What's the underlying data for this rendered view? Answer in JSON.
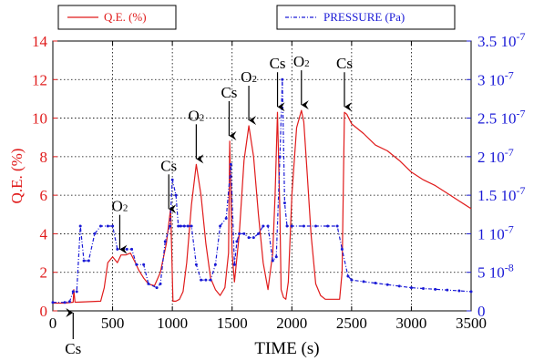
{
  "chart_data": {
    "type": "line",
    "xlabel": "TIME (s)",
    "ylabel_left": "Q.E. (%)",
    "xlim": [
      0,
      3500
    ],
    "ylim_left": [
      0,
      14
    ],
    "ylim_right": [
      0,
      3.5e-07
    ],
    "grid": "dotted",
    "x_ticks": [
      "0",
      "500",
      "1000",
      "1500",
      "2000",
      "2500",
      "3000",
      "3500"
    ],
    "left_ticks": [
      "0",
      "2",
      "4",
      "6",
      "8",
      "10",
      "12",
      "14"
    ],
    "right_ticks": [
      {
        "base": "0",
        "exp": ""
      },
      {
        "base": "5 10",
        "exp": "-8"
      },
      {
        "base": "1 10",
        "exp": "-7"
      },
      {
        "base": "1.5 10",
        "exp": "-7"
      },
      {
        "base": "2 10",
        "exp": "-7"
      },
      {
        "base": "2.5 10",
        "exp": "-7"
      },
      {
        "base": "3 10",
        "exp": "-7"
      },
      {
        "base": "3.5 10",
        "exp": "-7"
      }
    ],
    "series": [
      {
        "name": "Q.E. (%)",
        "axis": "left",
        "color": "#e01b1b",
        "style": "solid",
        "x": [
          0,
          100,
          170,
          175,
          185,
          200,
          400,
          430,
          460,
          500,
          540,
          570,
          610,
          650,
          690,
          720,
          760,
          800,
          850,
          900,
          950,
          985,
          995,
          1005,
          1030,
          1060,
          1090,
          1120,
          1160,
          1200,
          1240,
          1280,
          1320,
          1360,
          1400,
          1440,
          1470,
          1480,
          1500,
          1520,
          1560,
          1600,
          1640,
          1680,
          1720,
          1760,
          1800,
          1840,
          1860,
          1880,
          1900,
          1910,
          1930,
          1950,
          1970,
          2000,
          2040,
          2080,
          2100,
          2130,
          2160,
          2200,
          2240,
          2280,
          2300,
          2360,
          2400,
          2420,
          2440,
          2460,
          2500,
          2600,
          2700,
          2800,
          2900,
          3000,
          3100,
          3200,
          3300,
          3400,
          3500
        ],
        "y": [
          0.4,
          0.4,
          0.45,
          1.1,
          0.45,
          0.45,
          0.5,
          1.2,
          2.5,
          2.8,
          2.5,
          2.9,
          2.9,
          3.0,
          2.5,
          2.1,
          1.7,
          1.4,
          1.3,
          2.0,
          3.5,
          5.3,
          3.0,
          0.5,
          0.5,
          0.6,
          1.0,
          2.5,
          5.5,
          7.6,
          6.0,
          3.5,
          1.7,
          1.1,
          0.8,
          1.2,
          3.0,
          8.8,
          3.0,
          1.5,
          4.0,
          7.8,
          9.6,
          8.0,
          5.0,
          2.5,
          1.1,
          3.0,
          6.0,
          10.3,
          5.0,
          1.1,
          0.7,
          0.6,
          1.5,
          6.0,
          9.5,
          10.4,
          9.8,
          7.0,
          4.0,
          1.4,
          0.8,
          0.6,
          0.6,
          0.6,
          0.6,
          2.0,
          10.3,
          10.2,
          9.7,
          9.2,
          8.6,
          8.3,
          7.8,
          7.2,
          6.8,
          6.5,
          6.1,
          5.7,
          5.3
        ]
      },
      {
        "name": "PRESSURE (Pa)",
        "axis": "right",
        "color": "#1a1ad6",
        "style": "dash-dot-markers",
        "x": [
          0,
          100,
          140,
          170,
          200,
          230,
          260,
          300,
          350,
          400,
          460,
          500,
          540,
          580,
          620,
          660,
          700,
          760,
          800,
          870,
          900,
          940,
          980,
          1000,
          1030,
          1050,
          1070,
          1100,
          1130,
          1160,
          1200,
          1240,
          1280,
          1320,
          1360,
          1400,
          1450,
          1490,
          1520,
          1540,
          1560,
          1600,
          1640,
          1680,
          1720,
          1760,
          1800,
          1840,
          1870,
          1900,
          1920,
          1940,
          1960,
          2000,
          2100,
          2200,
          2300,
          2380,
          2420,
          2470,
          2500,
          2600,
          2700,
          2800,
          2900,
          3000,
          3100,
          3200,
          3300,
          3400,
          3500
        ],
        "y": [
          1.1e-08,
          1.1e-08,
          1.2e-08,
          2.5e-08,
          2.5e-08,
          1.1e-07,
          6.5e-08,
          6.5e-08,
          1e-07,
          1.1e-07,
          1.1e-07,
          1.1e-07,
          8e-08,
          8e-08,
          8e-08,
          8e-08,
          6e-08,
          6e-08,
          3.5e-08,
          3e-08,
          3.5e-08,
          9e-08,
          1.1e-07,
          1.7e-07,
          1.5e-07,
          1.1e-07,
          1.1e-07,
          1.1e-07,
          1.1e-07,
          1.1e-07,
          6e-08,
          4e-08,
          4e-08,
          4e-08,
          6e-08,
          1.1e-07,
          1.2e-07,
          1.9e-07,
          6e-08,
          9e-08,
          1e-07,
          1e-07,
          9.5e-08,
          9.5e-08,
          1e-07,
          1.1e-07,
          1.1e-07,
          6.5e-08,
          7e-08,
          2e-07,
          3e-07,
          1.4e-07,
          1.1e-07,
          1.1e-07,
          1.1e-07,
          1.1e-07,
          1.1e-07,
          1.1e-07,
          8e-08,
          4.5e-08,
          4e-08,
          3.8e-08,
          3.6e-08,
          3.4e-08,
          3.2e-08,
          3e-08,
          2.9e-08,
          2.8e-08,
          2.7e-08,
          2.6e-08,
          2.5e-08
        ]
      }
    ],
    "legend": [
      {
        "name": "Q.E. (%)",
        "color": "#e01b1b",
        "style": "solid",
        "position": "top-left"
      },
      {
        "name": "PRESSURE (Pa)",
        "color": "#1a1ad6",
        "style": "dash-dot-markers",
        "position": "top-right"
      }
    ],
    "annotations": [
      {
        "label": "Cs",
        "sub": "",
        "x": 170,
        "y_value": 0.0,
        "below_axis": true
      },
      {
        "label": "O",
        "sub": "2",
        "x": 560,
        "y_value": 2.9
      },
      {
        "label": "Cs",
        "sub": "",
        "x": 970,
        "y_value": 5.0
      },
      {
        "label": "O",
        "sub": "2",
        "x": 1200,
        "y_value": 7.6
      },
      {
        "label": "Cs",
        "sub": "",
        "x": 1475,
        "y_value": 8.8
      },
      {
        "label": "O",
        "sub": "2",
        "x": 1640,
        "y_value": 9.6
      },
      {
        "label": "Cs",
        "sub": "",
        "x": 1880,
        "y_value": 10.3
      },
      {
        "label": "O",
        "sub": "2",
        "x": 2080,
        "y_value": 10.4
      },
      {
        "label": "Cs",
        "sub": "",
        "x": 2440,
        "y_value": 10.3
      }
    ]
  }
}
